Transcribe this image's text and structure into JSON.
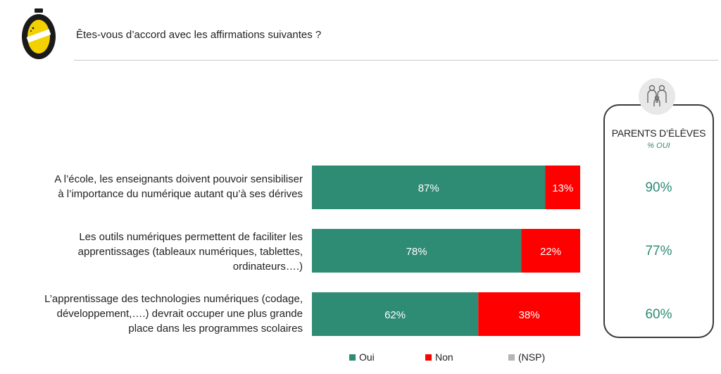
{
  "header": {
    "question": "Êtes-vous d’accord avec les affirmations suivantes ?"
  },
  "colors": {
    "oui": "#2e8b74",
    "non": "#ff0000",
    "nsp": "#b5b5b5",
    "panel_accent": "#2e8b74"
  },
  "chart_data": {
    "type": "bar",
    "orientation": "horizontal",
    "stacked": true,
    "unit": "%",
    "xlim": [
      0,
      100
    ],
    "grid": false,
    "legend_placement": "bottom",
    "categories": [
      "A l’école, les enseignants doivent pouvoir sensibiliser à l’importance du numérique autant qu’à ses dérives",
      "Les outils numériques permettent de faciliter les apprentissages (tableaux numériques, tablettes, ordinateurs….)",
      "L’apprentissage des technologies numériques (codage, développement,….) devrait occuper une plus grande place dans les programmes scolaires"
    ],
    "series": [
      {
        "name": "Oui",
        "values": [
          87,
          78,
          62
        ],
        "labels": [
          "87%",
          "78%",
          "62%"
        ]
      },
      {
        "name": "Non",
        "values": [
          13,
          22,
          38
        ],
        "labels": [
          "13%",
          "22%",
          "38%"
        ]
      },
      {
        "name": "(NSP)",
        "values": [
          0,
          0,
          0
        ],
        "labels": [
          "",
          "",
          ""
        ]
      }
    ]
  },
  "rows": [
    {
      "label_lines": [
        "A l’école, les enseignants doivent pouvoir sensibiliser",
        "à l’importance du numérique autant qu’à ses dérives"
      ]
    },
    {
      "label_lines": [
        "Les outils numériques permettent de faciliter les",
        "apprentissages (tableaux numériques, tablettes,",
        "ordinateurs….)"
      ]
    },
    {
      "label_lines": [
        "L’apprentissage des technologies numériques (codage,",
        "développement,….) devrait occuper une plus grande",
        "place dans les programmes scolaires"
      ]
    }
  ],
  "legend": {
    "items": [
      {
        "label": "Oui"
      },
      {
        "label": "Non"
      },
      {
        "label": "(NSP)"
      }
    ]
  },
  "side_panel": {
    "icon": "parents-children-icon",
    "title": "PARENTS D’ÉLÈVES",
    "subtitle": "% OUI",
    "values": [
      "90%",
      "77%",
      "60%"
    ]
  }
}
